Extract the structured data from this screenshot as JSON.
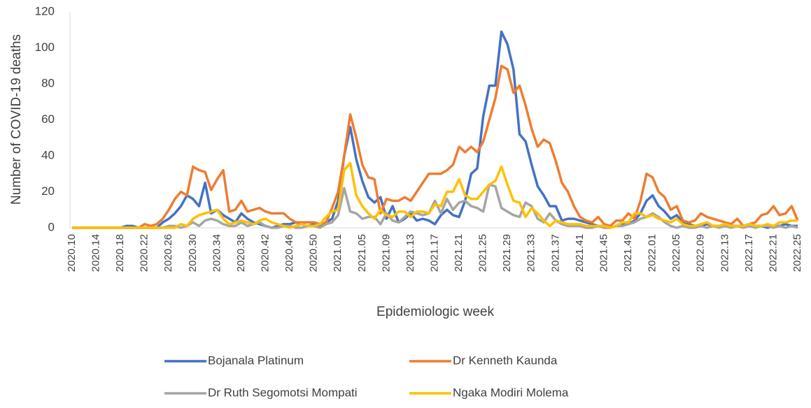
{
  "chart_data": {
    "type": "line",
    "x_label": "Epidemiologic week",
    "y_label": "Number of COVID-19 deaths",
    "categories": [
      "2020.10",
      null,
      null,
      null,
      "2020.14",
      null,
      null,
      null,
      "2020.18",
      null,
      null,
      null,
      "2020.22",
      null,
      null,
      null,
      "2020.26",
      null,
      null,
      null,
      "2020.30",
      null,
      null,
      null,
      "2020.34",
      null,
      null,
      null,
      "2020.38",
      null,
      null,
      null,
      "2020.42",
      null,
      null,
      null,
      "2020.46",
      null,
      null,
      null,
      "2020.50",
      null,
      null,
      null,
      "2021.01",
      null,
      null,
      null,
      "2021.05",
      null,
      null,
      null,
      "2021.09",
      null,
      null,
      null,
      "2021.13",
      null,
      null,
      null,
      "2021.17",
      null,
      null,
      null,
      "2021.21",
      null,
      null,
      null,
      "2021.25",
      null,
      null,
      null,
      "2021.29",
      null,
      null,
      null,
      "2021.33",
      null,
      null,
      null,
      "2021.37",
      null,
      null,
      null,
      "2021.41",
      null,
      null,
      null,
      "2021.45",
      null,
      null,
      null,
      "2021.49",
      null,
      null,
      null,
      "2022.01",
      null,
      null,
      null,
      "2022.05",
      null,
      null,
      null,
      "2022.09",
      null,
      null,
      null,
      "2022.13",
      null,
      null,
      null,
      "2022.17",
      null,
      null,
      null,
      "2022.21",
      null,
      null,
      null,
      "2022.25"
    ],
    "series": [
      {
        "name": "Bojanala Platinum",
        "color": "#4472c4",
        "values": [
          0,
          0,
          0,
          0,
          0,
          0,
          0,
          0,
          0,
          1,
          1,
          0,
          0,
          0,
          0,
          3,
          5,
          8,
          12,
          18,
          16,
          12,
          25,
          8,
          10,
          7,
          5,
          3,
          8,
          5,
          3,
          2,
          1,
          0,
          1,
          2,
          2,
          3,
          2,
          1,
          2,
          1,
          3,
          5,
          15,
          40,
          56,
          38,
          26,
          17,
          14,
          17,
          5,
          12,
          3,
          5,
          8,
          4,
          5,
          4,
          2,
          7,
          10,
          7,
          6,
          15,
          30,
          33,
          62,
          79,
          79,
          109,
          102,
          88,
          52,
          48,
          35,
          23,
          18,
          12,
          12,
          4,
          5,
          5,
          4,
          3,
          2,
          1,
          1,
          0,
          1,
          2,
          2,
          4,
          8,
          15,
          18,
          12,
          9,
          5,
          7,
          3,
          2,
          1,
          1,
          2,
          1,
          1,
          2,
          1,
          1,
          1,
          2,
          1,
          1,
          0,
          1,
          1,
          2,
          1,
          1
        ]
      },
      {
        "name": "Dr Kenneth Kaunda",
        "color": "#ed7d31",
        "values": [
          0,
          0,
          0,
          0,
          0,
          0,
          0,
          0,
          0,
          0,
          0,
          0,
          2,
          1,
          2,
          5,
          10,
          16,
          20,
          18,
          34,
          32,
          31,
          21,
          27,
          32,
          9,
          10,
          15,
          9,
          10,
          11,
          9,
          8,
          8,
          8,
          5,
          3,
          3,
          3,
          3,
          2,
          3,
          11,
          20,
          40,
          63,
          50,
          35,
          28,
          27,
          8,
          16,
          15,
          15,
          17,
          15,
          20,
          25,
          30,
          30,
          30,
          32,
          35,
          45,
          42,
          45,
          42,
          48,
          60,
          72,
          90,
          88,
          75,
          79,
          68,
          55,
          45,
          49,
          47,
          37,
          25,
          20,
          12,
          6,
          4,
          3,
          6,
          2,
          1,
          4,
          4,
          8,
          5,
          15,
          30,
          28,
          20,
          17,
          10,
          12,
          4,
          3,
          4,
          8,
          6,
          5,
          4,
          3,
          2,
          5,
          1,
          2,
          3,
          7,
          8,
          12,
          7,
          8,
          12,
          4
        ]
      },
      {
        "name": "Dr Ruth Segomotsi Mompati",
        "color": "#a5a5a5",
        "values": [
          0,
          0,
          0,
          0,
          0,
          0,
          0,
          0,
          0,
          0,
          0,
          0,
          0,
          0,
          0,
          0,
          1,
          1,
          0,
          1,
          3,
          1,
          4,
          5,
          4,
          2,
          1,
          1,
          3,
          1,
          2,
          3,
          1,
          0,
          0,
          1,
          1,
          0,
          0,
          1,
          1,
          0,
          2,
          3,
          7,
          22,
          9,
          8,
          5,
          6,
          6,
          2,
          8,
          4,
          3,
          6,
          9,
          8,
          7,
          8,
          15,
          8,
          16,
          10,
          14,
          15,
          12,
          11,
          9,
          24,
          23,
          11,
          9,
          7,
          6,
          14,
          12,
          5,
          3,
          8,
          4,
          2,
          1,
          1,
          1,
          0,
          0,
          1,
          0,
          0,
          1,
          1,
          2,
          3,
          5,
          6,
          8,
          6,
          3,
          1,
          0,
          1,
          0,
          0,
          1,
          0,
          1,
          0,
          1,
          0,
          1,
          0,
          1,
          0,
          1,
          1,
          0,
          1,
          0,
          1,
          0
        ]
      },
      {
        "name": "Ngaka Modiri Molema",
        "color": "#ffc000",
        "values": [
          0,
          0,
          0,
          0,
          0,
          0,
          0,
          0,
          0,
          0,
          0,
          0,
          0,
          0,
          0,
          0,
          0,
          0,
          2,
          1,
          5,
          7,
          8,
          9,
          10,
          5,
          2,
          3,
          4,
          3,
          2,
          4,
          5,
          3,
          2,
          1,
          0,
          1,
          2,
          1,
          1,
          2,
          6,
          9,
          10,
          32,
          36,
          18,
          12,
          8,
          5,
          10,
          7,
          6,
          9,
          9,
          6,
          9,
          9,
          8,
          13,
          12,
          20,
          20,
          27,
          18,
          16,
          16,
          20,
          24,
          26,
          34,
          24,
          15,
          14,
          6,
          11,
          8,
          4,
          1,
          4,
          3,
          2,
          2,
          2,
          1,
          1,
          1,
          1,
          0,
          1,
          3,
          3,
          8,
          8,
          6,
          7,
          5,
          4,
          3,
          5,
          2,
          1,
          1,
          2,
          3,
          1,
          1,
          2,
          1,
          1,
          1,
          2,
          1,
          1,
          2,
          1,
          3,
          3,
          4,
          4
        ]
      }
    ],
    "ylim": [
      0,
      120
    ],
    "yticks": [
      0,
      20,
      40,
      60,
      80,
      100,
      120
    ],
    "grid": false,
    "legend": "bottom"
  }
}
